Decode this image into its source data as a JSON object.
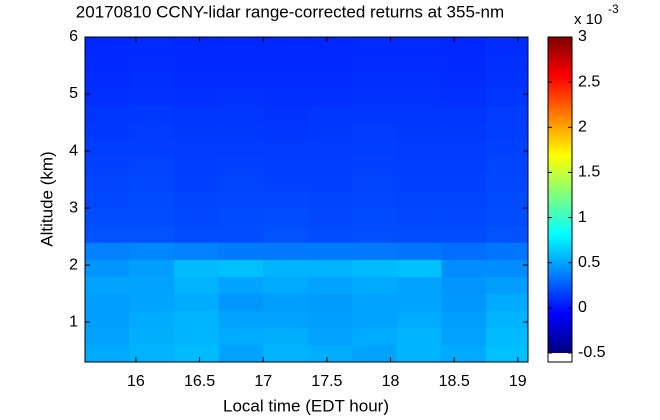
{
  "chart_data": {
    "type": "heatmap",
    "title": "20170810 CCNY-lidar range-corrected returns at 355-nm",
    "x_label": "Local time (EDT hour)",
    "y_label": "Altitude (km)",
    "x": [
      15.775,
      16.125,
      16.475,
      16.825,
      17.175,
      17.525,
      17.875,
      18.225,
      18.575,
      18.925
    ],
    "y": [
      0.45,
      0.75,
      1.05,
      1.35,
      1.65,
      1.95,
      2.25,
      2.55,
      2.85,
      3.15,
      3.45,
      3.75,
      4.05,
      4.35,
      4.65,
      4.95,
      5.25,
      5.55,
      5.85
    ],
    "z": [
      [
        0.52,
        0.55,
        0.58,
        0.5,
        0.55,
        0.53,
        0.5,
        0.56,
        0.52,
        0.6
      ],
      [
        0.5,
        0.54,
        0.56,
        0.52,
        0.54,
        0.5,
        0.52,
        0.55,
        0.5,
        0.58
      ],
      [
        0.48,
        0.52,
        0.55,
        0.5,
        0.5,
        0.48,
        0.5,
        0.52,
        0.48,
        0.55
      ],
      [
        0.48,
        0.5,
        0.52,
        0.46,
        0.48,
        0.47,
        0.5,
        0.5,
        0.46,
        0.52
      ],
      [
        0.5,
        0.5,
        0.55,
        0.5,
        0.52,
        0.5,
        0.52,
        0.5,
        0.45,
        0.48
      ],
      [
        0.45,
        0.48,
        0.58,
        0.6,
        0.55,
        0.55,
        0.58,
        0.6,
        0.42,
        0.42
      ],
      [
        0.38,
        0.4,
        0.38,
        0.36,
        0.35,
        0.36,
        0.35,
        0.34,
        0.32,
        0.34
      ],
      [
        0.22,
        0.22,
        0.2,
        0.2,
        0.22,
        0.2,
        0.21,
        0.2,
        0.2,
        0.22
      ],
      [
        0.2,
        0.2,
        0.18,
        0.19,
        0.2,
        0.18,
        0.19,
        0.18,
        0.18,
        0.2
      ],
      [
        0.18,
        0.19,
        0.17,
        0.18,
        0.18,
        0.17,
        0.18,
        0.17,
        0.17,
        0.19
      ],
      [
        0.17,
        0.18,
        0.16,
        0.17,
        0.16,
        0.16,
        0.17,
        0.16,
        0.16,
        0.18
      ],
      [
        0.16,
        0.17,
        0.15,
        0.16,
        0.15,
        0.15,
        0.16,
        0.15,
        0.15,
        0.17
      ],
      [
        0.15,
        0.15,
        0.14,
        0.14,
        0.14,
        0.14,
        0.15,
        0.14,
        0.14,
        0.16
      ],
      [
        0.13,
        0.14,
        0.13,
        0.13,
        0.12,
        0.13,
        0.14,
        0.13,
        0.13,
        0.15
      ],
      [
        0.12,
        0.13,
        0.12,
        0.12,
        0.11,
        0.12,
        0.12,
        0.12,
        0.12,
        0.14
      ],
      [
        0.1,
        0.11,
        0.1,
        0.11,
        0.1,
        0.1,
        0.11,
        0.11,
        0.1,
        0.12
      ],
      [
        0.09,
        0.1,
        0.09,
        0.09,
        0.09,
        0.09,
        0.1,
        0.1,
        0.09,
        0.11
      ],
      [
        0.08,
        0.09,
        0.08,
        0.08,
        0.08,
        0.08,
        0.09,
        0.09,
        0.08,
        0.1
      ],
      [
        0.07,
        0.08,
        0.07,
        0.07,
        0.07,
        0.07,
        0.08,
        0.08,
        0.07,
        0.09
      ]
    ],
    "xlim": [
      15.6,
      19.08
    ],
    "ylim": [
      0.3,
      6
    ],
    "xticks": [
      16,
      16.5,
      17,
      17.5,
      18,
      18.5,
      19
    ],
    "yticks": [
      1,
      2,
      3,
      4,
      5,
      6
    ],
    "colormap": "jet",
    "colorbar": {
      "clim": [
        -0.5,
        3
      ],
      "lim": [
        -0.6,
        3
      ],
      "ticks": [
        -0.5,
        0,
        0.5,
        1,
        1.5,
        2,
        2.5,
        3
      ],
      "scale_label": "x 10",
      "exponent": "-3"
    }
  }
}
